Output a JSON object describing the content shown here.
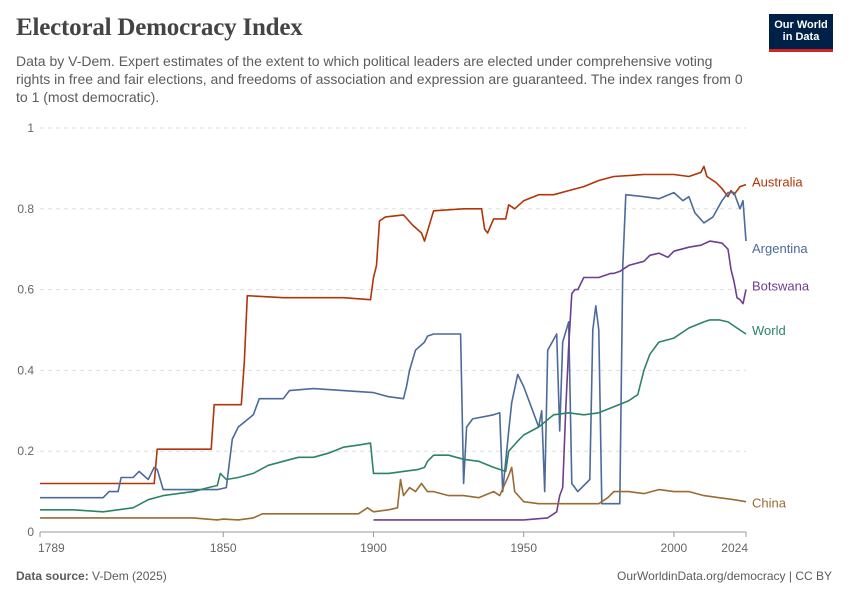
{
  "header": {
    "title": "Electoral Democracy Index",
    "subtitle": "Data by V-Dem. Expert estimates of the extent to which political leaders are elected under comprehensive voting rights in free and fair elections, and freedoms of association and expression are guaranteed. The index ranges from 0 to 1 (most democratic).",
    "logo_line1": "Our World",
    "logo_line2": "in Data"
  },
  "footer": {
    "source_label": "Data source:",
    "source_value": "V-Dem (2025)",
    "url": "OurWorldinData.org/democracy | CC BY"
  },
  "chart_data": {
    "type": "line",
    "xlim": [
      1789,
      2024
    ],
    "ylim": [
      0,
      1
    ],
    "x_ticks": [
      1789,
      1850,
      1900,
      1950,
      2000,
      2024
    ],
    "y_ticks": [
      0,
      0.2,
      0.4,
      0.6,
      0.8,
      1
    ],
    "y_tick_labels": [
      "0",
      "0.2",
      "0.4",
      "0.6",
      "0.8",
      "1"
    ],
    "grid": "horizontal-dashed",
    "legend": "line-end labels",
    "series": [
      {
        "name": "Australia",
        "color": "#b13507",
        "points": [
          [
            1789,
            0.12
          ],
          [
            1827,
            0.12
          ],
          [
            1828,
            0.205
          ],
          [
            1846,
            0.205
          ],
          [
            1847,
            0.315
          ],
          [
            1856,
            0.315
          ],
          [
            1857,
            0.42
          ],
          [
            1858,
            0.585
          ],
          [
            1870,
            0.58
          ],
          [
            1880,
            0.58
          ],
          [
            1890,
            0.58
          ],
          [
            1899,
            0.575
          ],
          [
            1900,
            0.63
          ],
          [
            1901,
            0.66
          ],
          [
            1902,
            0.77
          ],
          [
            1904,
            0.78
          ],
          [
            1910,
            0.785
          ],
          [
            1913,
            0.76
          ],
          [
            1916,
            0.74
          ],
          [
            1917,
            0.72
          ],
          [
            1920,
            0.795
          ],
          [
            1930,
            0.8
          ],
          [
            1936,
            0.8
          ],
          [
            1937,
            0.75
          ],
          [
            1938,
            0.74
          ],
          [
            1940,
            0.775
          ],
          [
            1944,
            0.775
          ],
          [
            1945,
            0.81
          ],
          [
            1947,
            0.8
          ],
          [
            1950,
            0.82
          ],
          [
            1955,
            0.835
          ],
          [
            1960,
            0.835
          ],
          [
            1965,
            0.845
          ],
          [
            1970,
            0.855
          ],
          [
            1975,
            0.87
          ],
          [
            1980,
            0.88
          ],
          [
            1990,
            0.885
          ],
          [
            2000,
            0.885
          ],
          [
            2005,
            0.88
          ],
          [
            2009,
            0.89
          ],
          [
            2010,
            0.905
          ],
          [
            2011,
            0.88
          ],
          [
            2012,
            0.875
          ],
          [
            2014,
            0.865
          ],
          [
            2016,
            0.85
          ],
          [
            2018,
            0.83
          ],
          [
            2019,
            0.845
          ],
          [
            2020,
            0.835
          ],
          [
            2022,
            0.855
          ],
          [
            2024,
            0.86
          ]
        ]
      },
      {
        "name": "Argentina",
        "color": "#4c6a9c",
        "points": [
          [
            1789,
            0.085
          ],
          [
            1810,
            0.085
          ],
          [
            1812,
            0.1
          ],
          [
            1815,
            0.1
          ],
          [
            1816,
            0.135
          ],
          [
            1820,
            0.135
          ],
          [
            1822,
            0.15
          ],
          [
            1825,
            0.13
          ],
          [
            1827,
            0.16
          ],
          [
            1828,
            0.155
          ],
          [
            1830,
            0.105
          ],
          [
            1848,
            0.105
          ],
          [
            1851,
            0.11
          ],
          [
            1852,
            0.17
          ],
          [
            1853,
            0.23
          ],
          [
            1855,
            0.26
          ],
          [
            1860,
            0.29
          ],
          [
            1862,
            0.33
          ],
          [
            1870,
            0.33
          ],
          [
            1872,
            0.35
          ],
          [
            1880,
            0.355
          ],
          [
            1890,
            0.35
          ],
          [
            1900,
            0.345
          ],
          [
            1905,
            0.335
          ],
          [
            1910,
            0.33
          ],
          [
            1911,
            0.36
          ],
          [
            1912,
            0.4
          ],
          [
            1914,
            0.45
          ],
          [
            1917,
            0.47
          ],
          [
            1918,
            0.485
          ],
          [
            1920,
            0.49
          ],
          [
            1929,
            0.49
          ],
          [
            1930,
            0.12
          ],
          [
            1931,
            0.26
          ],
          [
            1933,
            0.28
          ],
          [
            1940,
            0.29
          ],
          [
            1942,
            0.295
          ],
          [
            1943,
            0.1
          ],
          [
            1945,
            0.25
          ],
          [
            1946,
            0.32
          ],
          [
            1948,
            0.39
          ],
          [
            1950,
            0.36
          ],
          [
            1953,
            0.3
          ],
          [
            1955,
            0.26
          ],
          [
            1956,
            0.3
          ],
          [
            1957,
            0.1
          ],
          [
            1958,
            0.45
          ],
          [
            1961,
            0.49
          ],
          [
            1962,
            0.25
          ],
          [
            1963,
            0.47
          ],
          [
            1965,
            0.52
          ],
          [
            1966,
            0.12
          ],
          [
            1968,
            0.1
          ],
          [
            1972,
            0.13
          ],
          [
            1973,
            0.5
          ],
          [
            1974,
            0.56
          ],
          [
            1975,
            0.5
          ],
          [
            1976,
            0.07
          ],
          [
            1982,
            0.07
          ],
          [
            1983,
            0.66
          ],
          [
            1984,
            0.835
          ],
          [
            1990,
            0.83
          ],
          [
            1995,
            0.825
          ],
          [
            2000,
            0.84
          ],
          [
            2003,
            0.82
          ],
          [
            2005,
            0.83
          ],
          [
            2007,
            0.79
          ],
          [
            2010,
            0.765
          ],
          [
            2013,
            0.78
          ],
          [
            2016,
            0.82
          ],
          [
            2018,
            0.84
          ],
          [
            2020,
            0.84
          ],
          [
            2022,
            0.8
          ],
          [
            2023,
            0.82
          ],
          [
            2024,
            0.72
          ]
        ]
      },
      {
        "name": "Botswana",
        "color": "#6d3e91",
        "points": [
          [
            1900,
            0.03
          ],
          [
            1930,
            0.03
          ],
          [
            1950,
            0.03
          ],
          [
            1958,
            0.035
          ],
          [
            1961,
            0.05
          ],
          [
            1962,
            0.09
          ],
          [
            1963,
            0.11
          ],
          [
            1964,
            0.3
          ],
          [
            1965,
            0.46
          ],
          [
            1966,
            0.59
          ],
          [
            1967,
            0.6
          ],
          [
            1968,
            0.6
          ],
          [
            1970,
            0.63
          ],
          [
            1975,
            0.63
          ],
          [
            1979,
            0.64
          ],
          [
            1980,
            0.64
          ],
          [
            1982,
            0.645
          ],
          [
            1985,
            0.66
          ],
          [
            1990,
            0.67
          ],
          [
            1992,
            0.685
          ],
          [
            1995,
            0.69
          ],
          [
            1998,
            0.68
          ],
          [
            2000,
            0.695
          ],
          [
            2005,
            0.705
          ],
          [
            2009,
            0.71
          ],
          [
            2012,
            0.72
          ],
          [
            2016,
            0.715
          ],
          [
            2018,
            0.7
          ],
          [
            2019,
            0.65
          ],
          [
            2020,
            0.62
          ],
          [
            2021,
            0.58
          ],
          [
            2022,
            0.575
          ],
          [
            2023,
            0.565
          ],
          [
            2024,
            0.6
          ]
        ]
      },
      {
        "name": "World",
        "color": "#2c8465",
        "points": [
          [
            1789,
            0.055
          ],
          [
            1800,
            0.055
          ],
          [
            1810,
            0.05
          ],
          [
            1815,
            0.055
          ],
          [
            1820,
            0.06
          ],
          [
            1825,
            0.08
          ],
          [
            1830,
            0.09
          ],
          [
            1835,
            0.095
          ],
          [
            1840,
            0.1
          ],
          [
            1845,
            0.11
          ],
          [
            1848,
            0.115
          ],
          [
            1849,
            0.145
          ],
          [
            1851,
            0.13
          ],
          [
            1855,
            0.135
          ],
          [
            1860,
            0.145
          ],
          [
            1865,
            0.165
          ],
          [
            1870,
            0.175
          ],
          [
            1875,
            0.185
          ],
          [
            1880,
            0.185
          ],
          [
            1885,
            0.195
          ],
          [
            1890,
            0.21
          ],
          [
            1895,
            0.215
          ],
          [
            1899,
            0.22
          ],
          [
            1900,
            0.145
          ],
          [
            1905,
            0.145
          ],
          [
            1910,
            0.15
          ],
          [
            1915,
            0.155
          ],
          [
            1917,
            0.16
          ],
          [
            1918,
            0.175
          ],
          [
            1920,
            0.19
          ],
          [
            1925,
            0.19
          ],
          [
            1930,
            0.18
          ],
          [
            1935,
            0.175
          ],
          [
            1940,
            0.16
          ],
          [
            1944,
            0.15
          ],
          [
            1945,
            0.2
          ],
          [
            1948,
            0.225
          ],
          [
            1950,
            0.24
          ],
          [
            1955,
            0.26
          ],
          [
            1960,
            0.29
          ],
          [
            1965,
            0.295
          ],
          [
            1970,
            0.29
          ],
          [
            1975,
            0.295
          ],
          [
            1980,
            0.31
          ],
          [
            1985,
            0.325
          ],
          [
            1988,
            0.34
          ],
          [
            1990,
            0.4
          ],
          [
            1992,
            0.44
          ],
          [
            1995,
            0.47
          ],
          [
            2000,
            0.48
          ],
          [
            2005,
            0.505
          ],
          [
            2010,
            0.52
          ],
          [
            2012,
            0.525
          ],
          [
            2015,
            0.525
          ],
          [
            2018,
            0.52
          ],
          [
            2020,
            0.51
          ],
          [
            2022,
            0.5
          ],
          [
            2024,
            0.49
          ]
        ]
      },
      {
        "name": "China",
        "color": "#9a6b33",
        "points": [
          [
            1789,
            0.035
          ],
          [
            1820,
            0.035
          ],
          [
            1840,
            0.035
          ],
          [
            1848,
            0.03
          ],
          [
            1850,
            0.032
          ],
          [
            1855,
            0.03
          ],
          [
            1860,
            0.035
          ],
          [
            1863,
            0.045
          ],
          [
            1870,
            0.045
          ],
          [
            1880,
            0.045
          ],
          [
            1890,
            0.045
          ],
          [
            1895,
            0.045
          ],
          [
            1898,
            0.06
          ],
          [
            1900,
            0.05
          ],
          [
            1905,
            0.055
          ],
          [
            1908,
            0.06
          ],
          [
            1909,
            0.13
          ],
          [
            1910,
            0.09
          ],
          [
            1912,
            0.11
          ],
          [
            1914,
            0.1
          ],
          [
            1916,
            0.12
          ],
          [
            1918,
            0.1
          ],
          [
            1920,
            0.1
          ],
          [
            1925,
            0.09
          ],
          [
            1930,
            0.09
          ],
          [
            1935,
            0.085
          ],
          [
            1940,
            0.1
          ],
          [
            1942,
            0.09
          ],
          [
            1945,
            0.14
          ],
          [
            1946,
            0.16
          ],
          [
            1947,
            0.1
          ],
          [
            1950,
            0.075
          ],
          [
            1955,
            0.07
          ],
          [
            1960,
            0.07
          ],
          [
            1965,
            0.07
          ],
          [
            1970,
            0.07
          ],
          [
            1975,
            0.07
          ],
          [
            1978,
            0.085
          ],
          [
            1980,
            0.1
          ],
          [
            1985,
            0.1
          ],
          [
            1990,
            0.095
          ],
          [
            1995,
            0.105
          ],
          [
            2000,
            0.1
          ],
          [
            2005,
            0.1
          ],
          [
            2010,
            0.09
          ],
          [
            2015,
            0.085
          ],
          [
            2020,
            0.08
          ],
          [
            2024,
            0.075
          ]
        ]
      }
    ]
  }
}
